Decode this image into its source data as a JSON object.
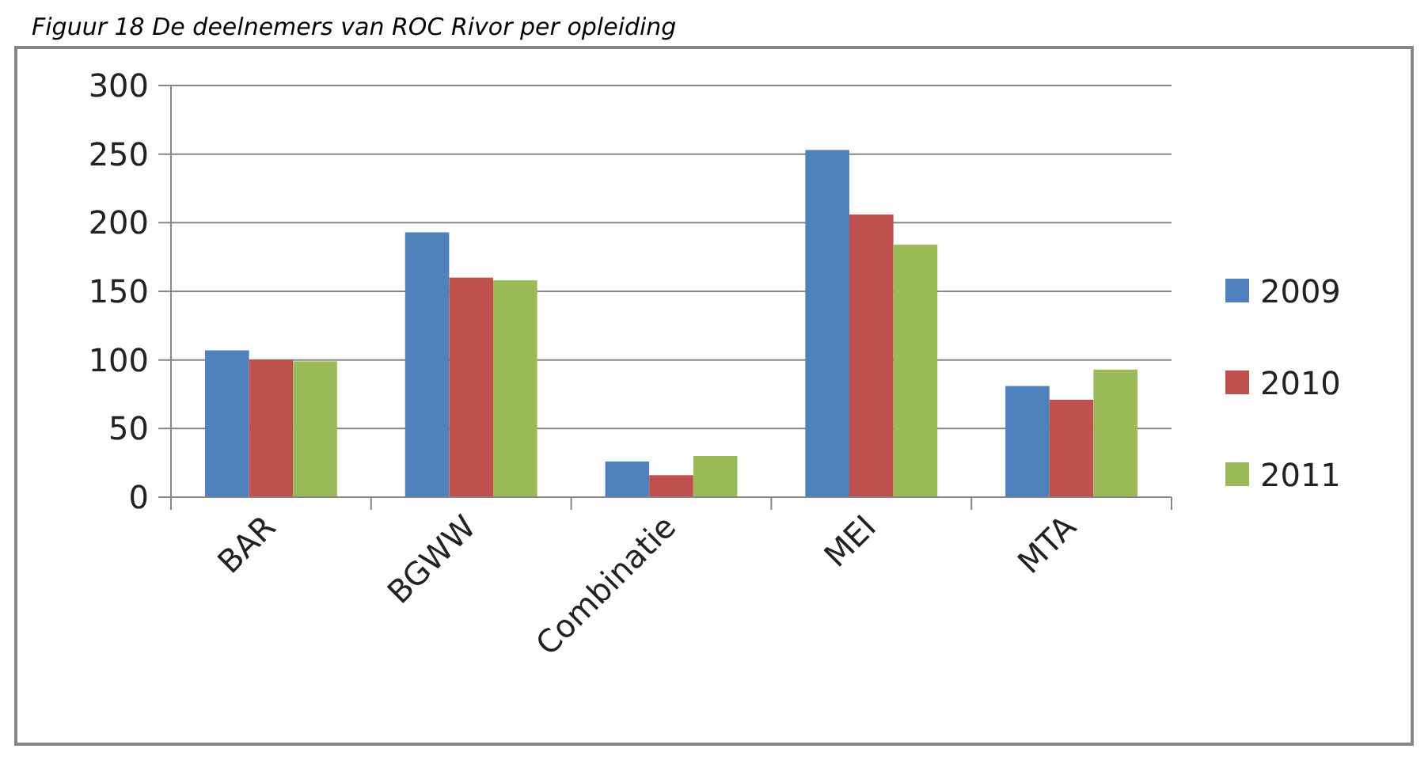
{
  "chart_data": {
    "type": "bar",
    "title": "Figuur 18 De deelnemers van ROC Rivor per opleiding",
    "categories": [
      "BAR",
      "BGWW",
      "Combinatie",
      "MEI",
      "MTA"
    ],
    "series": [
      {
        "name": "2009",
        "color": "#4f81bd",
        "values": [
          107,
          193,
          26,
          253,
          81
        ]
      },
      {
        "name": "2010",
        "color": "#c0504d",
        "values": [
          100,
          160,
          16,
          206,
          71
        ]
      },
      {
        "name": "2011",
        "color": "#9bbb59",
        "values": [
          99,
          158,
          30,
          184,
          93
        ]
      }
    ],
    "ylim": [
      0,
      300
    ],
    "yticks": [
      0,
      50,
      100,
      150,
      200,
      250,
      300
    ],
    "grid": "y",
    "legend": "right"
  }
}
